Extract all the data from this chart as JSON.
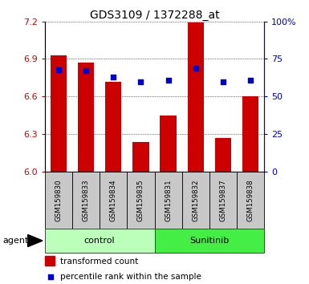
{
  "title": "GDS3109 / 1372288_at",
  "samples": [
    "GSM159830",
    "GSM159833",
    "GSM159834",
    "GSM159835",
    "GSM159831",
    "GSM159832",
    "GSM159837",
    "GSM159838"
  ],
  "bar_values": [
    6.93,
    6.87,
    6.72,
    6.24,
    6.45,
    7.19,
    6.27,
    6.6
  ],
  "dot_values": [
    68,
    67,
    63,
    60,
    61,
    69,
    60,
    61
  ],
  "groups": [
    {
      "label": "control",
      "indices": [
        0,
        1,
        2,
        3
      ],
      "color": "#bbffbb"
    },
    {
      "label": "Sunitinib",
      "indices": [
        4,
        5,
        6,
        7
      ],
      "color": "#44ee44"
    }
  ],
  "ylim_left": [
    6.0,
    7.2
  ],
  "ylim_right": [
    0,
    100
  ],
  "yticks_left": [
    6.0,
    6.3,
    6.6,
    6.9,
    7.2
  ],
  "yticks_right": [
    0,
    25,
    50,
    75,
    100
  ],
  "ytick_labels_right": [
    "0",
    "25",
    "50",
    "75",
    "100%"
  ],
  "bar_color": "#cc0000",
  "dot_color": "#0000cc",
  "bar_width": 0.6,
  "grid_color": "black",
  "right_axis_color": "#0000cc",
  "tick_label_color_left": "#cc0000",
  "agent_label": "agent",
  "legend_bar": "transformed count",
  "legend_dot": "percentile rank within the sample",
  "cell_bg": "#c8c8c8",
  "title_fontsize": 10
}
